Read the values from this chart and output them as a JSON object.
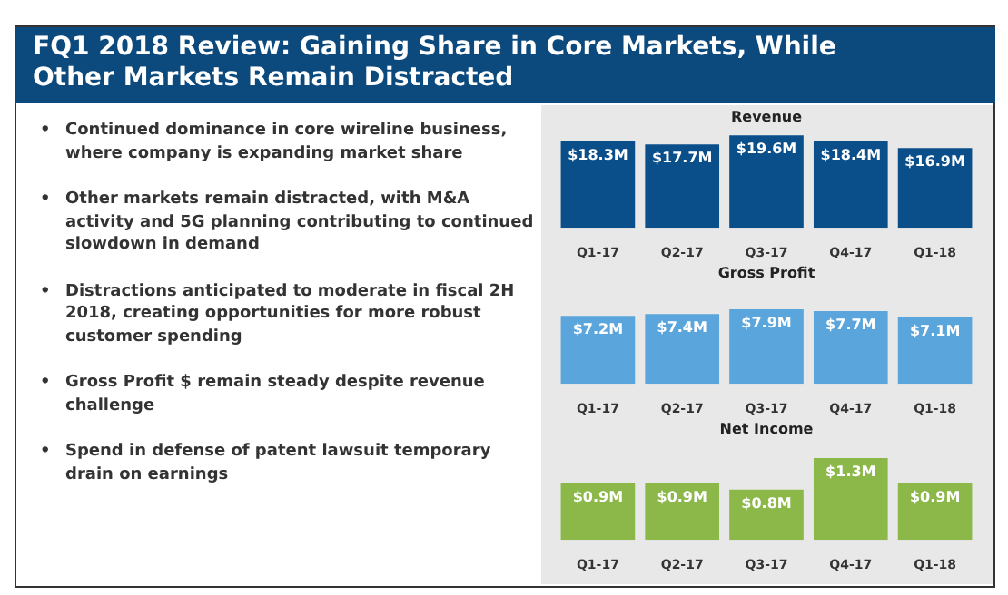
{
  "chart_data": [
    {
      "type": "other",
      "title": "FQ1 2018 Review: Gaining Share in Core Markets, While Other Markets Remain Distracted",
      "annotations": [
        "• Continued dominance in core wireline business, where company is expanding market share",
        "• Other markets remain distracted, with M&A activity and 5G planning contributing to continued slowdown in demand",
        "• Distractions anticipated to moderate in fiscal 2H 2018, creating opportunities for more robust customer spending",
        "• Gross Profit $ remain steady despite revenue challenge",
        "• Spend in defense of patent lawsuit temporary drain on earnings"
      ]
    },
    {
      "type": "bar",
      "title": "Revenue",
      "categories": [
        "Q1-17",
        "Q2-17",
        "Q3-17",
        "Q4-17",
        "Q1-18"
      ],
      "values": [
        18.3,
        17.7,
        19.6,
        18.4,
        16.9
      ],
      "color": "#0b4f8a",
      "value_labels": [
        "$18.3M",
        "$17.7M",
        "$19.6M",
        "$18.4M",
        "$16.9M"
      ]
    },
    {
      "type": "bar",
      "title": "Gross Profit",
      "categories": [
        "Q1-17",
        "Q2-17",
        "Q3-17",
        "Q4-17",
        "Q1-18"
      ],
      "values": [
        7.2,
        7.4,
        7.9,
        7.7,
        7.1
      ],
      "color": "#5aa6dc",
      "value_labels": [
        "$7.2M",
        "$7.4M",
        "$7.9M",
        "$7.7M",
        "$7.1M"
      ]
    },
    {
      "type": "bar",
      "title": "Net Income",
      "categories": [
        "Q1-17",
        "Q2-17",
        "Q3-17",
        "Q4-17",
        "Q1-18"
      ],
      "values": [
        0.9,
        0.9,
        0.8,
        1.3,
        0.9
      ],
      "color": "#8cb84a",
      "value_labels": [
        "$0.9M",
        "$0.9M",
        "$0.8M",
        "$1.3M",
        "$0.9M"
      ]
    }
  ]
}
